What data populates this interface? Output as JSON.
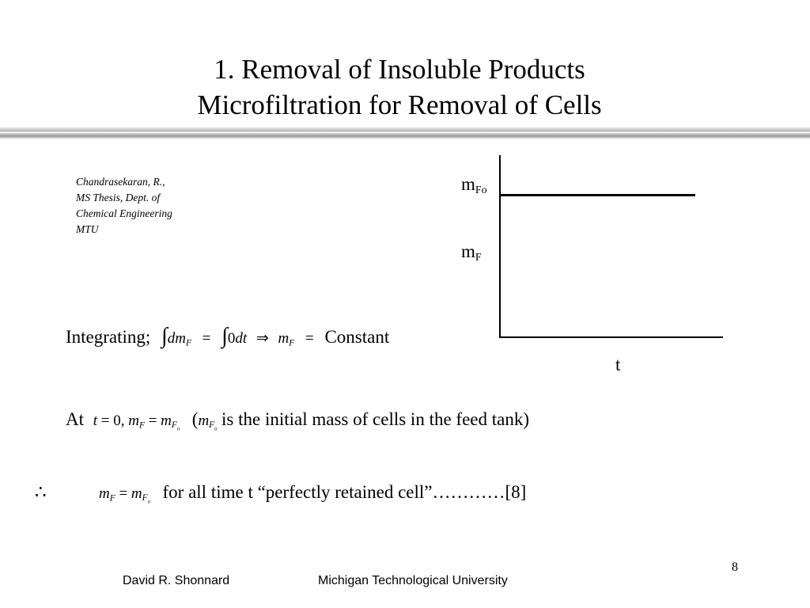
{
  "slide": {
    "title_line1": "1. Removal of Insoluble Products",
    "title_line2": "Microfiltration for Removal of Cells"
  },
  "citation": {
    "line1": "Chandrasekaran, R.,",
    "line2": "MS Thesis, Dept. of",
    "line3": "Chemical Engineering",
    "line4": "MTU"
  },
  "graph": {
    "ylabel_top_base": "m",
    "ylabel_top_sub": "Fo",
    "ylabel_mid_base": "m",
    "ylabel_mid_sub": "F",
    "xlabel": "t"
  },
  "equations": {
    "integrating_label": "Integrating;",
    "constant_word": "Constant",
    "at_label": "At",
    "initial_note": "is the initial mass of cells in the feed tank)",
    "therefore_symbol": "∴",
    "conclusion_text": "for all time t “perfectly retained cell”…………[8]"
  },
  "footer": {
    "author": "David R. Shonnard",
    "university": "Michigan Technological University",
    "page_number": "8"
  }
}
